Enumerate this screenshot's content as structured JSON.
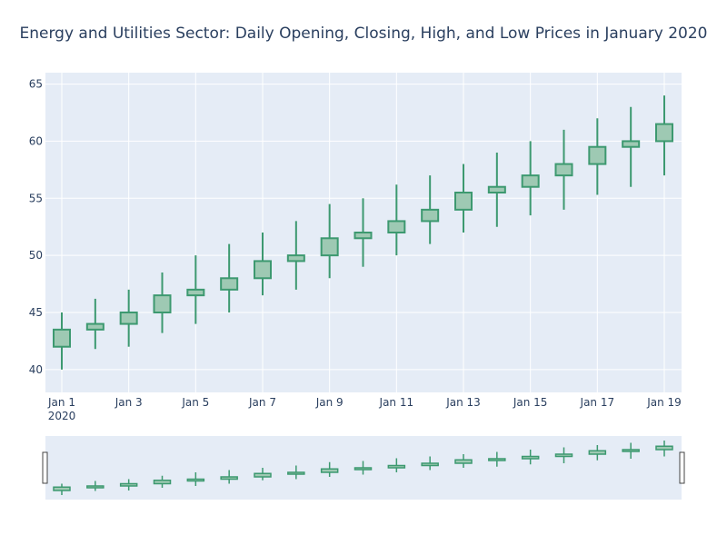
{
  "chart_data": {
    "type": "candlestick",
    "title": "Energy and Utilities Sector: Daily Opening, Closing, High, and Low Prices in January 2020",
    "xlabel": "",
    "ylabel": "",
    "x": [
      "2020-01-01",
      "2020-01-02",
      "2020-01-03",
      "2020-01-04",
      "2020-01-05",
      "2020-01-06",
      "2020-01-07",
      "2020-01-08",
      "2020-01-09",
      "2020-01-10",
      "2020-01-11",
      "2020-01-12",
      "2020-01-13",
      "2020-01-14",
      "2020-01-15",
      "2020-01-16",
      "2020-01-17",
      "2020-01-18",
      "2020-01-19"
    ],
    "open": [
      42.0,
      43.5,
      44.0,
      45.0,
      46.5,
      47.0,
      48.0,
      49.5,
      50.0,
      51.5,
      52.0,
      53.0,
      54.0,
      55.5,
      56.0,
      57.0,
      58.0,
      59.5,
      60.0
    ],
    "high": [
      45.0,
      46.2,
      47.0,
      48.5,
      50.0,
      51.0,
      52.0,
      53.0,
      54.5,
      55.0,
      56.2,
      57.0,
      58.0,
      59.0,
      60.0,
      61.0,
      62.0,
      63.0,
      64.0
    ],
    "low": [
      40.0,
      41.8,
      42.0,
      43.2,
      44.0,
      45.0,
      46.5,
      47.0,
      48.0,
      49.0,
      50.0,
      51.0,
      52.0,
      52.5,
      53.5,
      54.0,
      55.3,
      56.0,
      57.0
    ],
    "close": [
      43.5,
      44.0,
      45.0,
      46.5,
      47.0,
      48.0,
      49.5,
      50.0,
      51.5,
      52.0,
      53.0,
      54.0,
      55.5,
      56.0,
      57.0,
      58.0,
      59.5,
      60.0,
      61.5
    ],
    "ylim": [
      38,
      66
    ],
    "yticks": [
      40,
      45,
      50,
      55,
      60,
      65
    ],
    "xticks": [
      {
        "date": "2020-01-01",
        "label": "Jan 1",
        "sublabel": "2020"
      },
      {
        "date": "2020-01-03",
        "label": "Jan 3"
      },
      {
        "date": "2020-01-05",
        "label": "Jan 5"
      },
      {
        "date": "2020-01-07",
        "label": "Jan 7"
      },
      {
        "date": "2020-01-09",
        "label": "Jan 9"
      },
      {
        "date": "2020-01-11",
        "label": "Jan 11"
      },
      {
        "date": "2020-01-13",
        "label": "Jan 13"
      },
      {
        "date": "2020-01-15",
        "label": "Jan 15"
      },
      {
        "date": "2020-01-17",
        "label": "Jan 17"
      },
      {
        "date": "2020-01-19",
        "label": "Jan 19"
      }
    ],
    "grid": true,
    "range_slider": true,
    "colors": {
      "increasing_line": "#3d9970",
      "increasing_fill": "#9ec9b3",
      "plot_bg": "#e5ecf6",
      "grid": "#ffffff",
      "text": "#2a3f5f"
    }
  }
}
